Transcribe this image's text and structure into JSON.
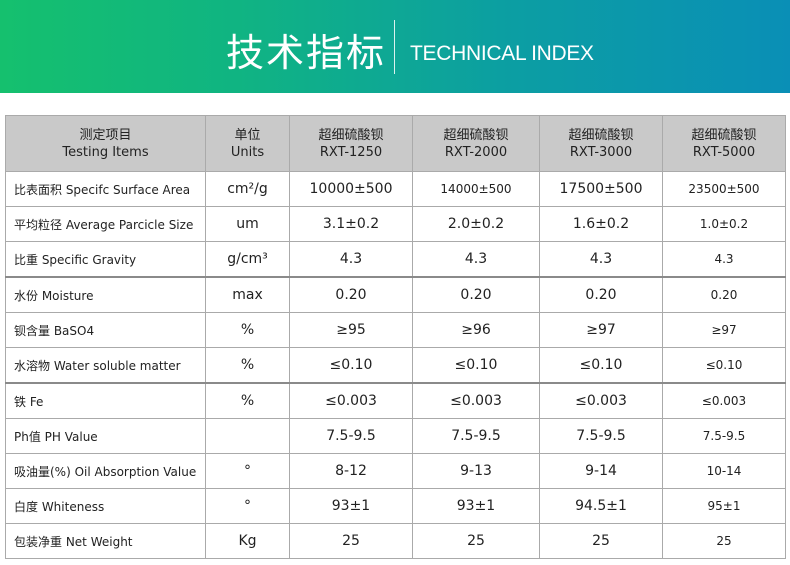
{
  "banner": {
    "title_cn": "技术指标",
    "title_en": "TECHNICAL INDEX"
  },
  "table": {
    "headers": [
      [
        "测定项目",
        "Testing Items"
      ],
      [
        "单位",
        "Units"
      ],
      [
        "超细硫酸钡",
        "RXT-1250"
      ],
      [
        "超细硫酸钡",
        "RXT-2000"
      ],
      [
        "超细硫酸钡",
        "RXT-3000"
      ],
      [
        "超细硫酸钡",
        "RXT-5000"
      ]
    ],
    "rows": [
      {
        "item": "比表面积 Specifc Surface Area",
        "unit": "cm²/g",
        "values": [
          "10000±500",
          "14000±500",
          "17500±500",
          "23500±500"
        ]
      },
      {
        "item": "平均粒径  Average Parcicle Size",
        "unit": "um",
        "values": [
          "3.1±0.2",
          "2.0±0.2",
          "1.6±0.2",
          "1.0±0.2"
        ]
      },
      {
        "item": "比重   Specific Gravity",
        "unit": "g/cm³",
        "values": [
          "4.3",
          "4.3",
          "4.3",
          "4.3"
        ]
      },
      {
        "item": "水份   Moisture",
        "unit": "max",
        "values": [
          "0.20",
          "0.20",
          "0.20",
          "0.20"
        ]
      },
      {
        "item": "钡含量   BaSO4",
        "unit": "%",
        "values": [
          "≥95",
          "≥96",
          "≥97",
          "≥97"
        ]
      },
      {
        "item": "水溶物  Water soluble matter",
        "unit": "%",
        "values": [
          "≤0.10",
          "≤0.10",
          "≤0.10",
          "≤0.10"
        ]
      },
      {
        "item": "铁  Fe",
        "unit": "%",
        "values": [
          "≤0.003",
          "≤0.003",
          "≤0.003",
          "≤0.003"
        ]
      },
      {
        "item": "Ph值  PH  Value",
        "unit": "",
        "values": [
          "7.5-9.5",
          "7.5-9.5",
          "7.5-9.5",
          "7.5-9.5"
        ]
      },
      {
        "item": "吸油量(%) Oil Absorption Value",
        "unit": "°",
        "values": [
          "8-12",
          "9-13",
          "9-14",
          "10-14"
        ]
      },
      {
        "item": "白度  Whiteness",
        "unit": "°",
        "values": [
          "93±1",
          "93±1",
          "94.5±1",
          "95±1"
        ]
      },
      {
        "item": "包装净重  Net Weight",
        "unit": "Kg",
        "values": [
          "25",
          "25",
          "25",
          "25"
        ]
      }
    ]
  }
}
